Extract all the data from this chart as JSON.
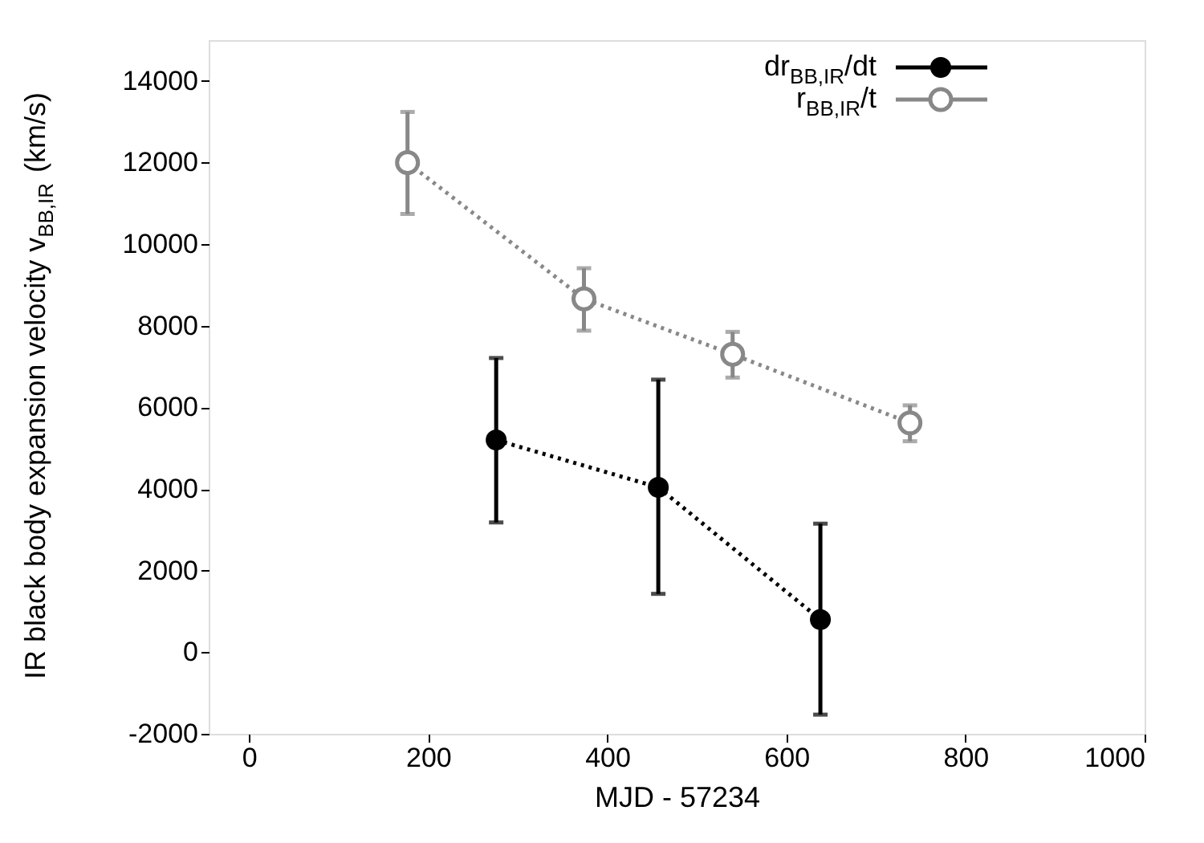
{
  "chart_data": {
    "type": "line",
    "xlabel": "MJD - 57234",
    "ylabel": "IR black body expansion velocity v$_{BB,IR}$ (km/s)",
    "xlim": [
      -45,
      1000
    ],
    "xticks": [
      0,
      200,
      400,
      600,
      800,
      1000
    ],
    "ylim": [
      -2000,
      15000
    ],
    "yticks": [
      -2000,
      0,
      2000,
      4000,
      6000,
      8000,
      10000,
      12000,
      14000
    ],
    "grid": false,
    "legend": "top right",
    "marker": "circle",
    "line_style": "dotted",
    "series": [
      {
        "name": "dr$_{BB,IR}$/dt",
        "color": "#000000",
        "x": [
          276,
          457,
          638
        ],
        "values": [
          5200,
          4040,
          800
        ],
        "errors": [
          [
            3180,
            7210
          ],
          [
            1430,
            6680
          ],
          [
            -1530,
            3150
          ]
        ]
      },
      {
        "name": "r$_{BB,IR}$/t",
        "color": "#888888",
        "x": [
          177,
          374,
          540,
          738
        ],
        "values": [
          12000,
          8660,
          7300,
          5620
        ],
        "errors": [
          [
            10740,
            13240
          ],
          [
            7880,
            9410
          ],
          [
            6730,
            7850
          ],
          [
            5170,
            6050
          ]
        ]
      }
    ]
  }
}
